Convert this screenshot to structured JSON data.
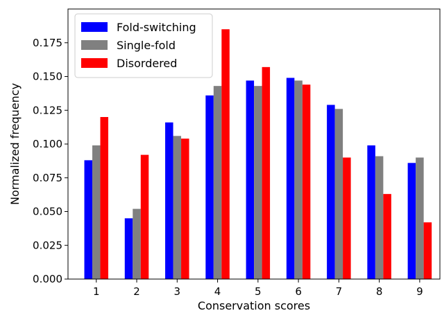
{
  "chart_data": {
    "type": "bar",
    "title": "",
    "xlabel": "Conservation scores",
    "ylabel": "Normalized frequency",
    "categories": [
      "1",
      "2",
      "3",
      "4",
      "5",
      "6",
      "7",
      "8",
      "9"
    ],
    "ylim": [
      0,
      0.2
    ],
    "yticks": [
      "0.000",
      "0.025",
      "0.050",
      "0.075",
      "0.100",
      "0.125",
      "0.150",
      "0.175"
    ],
    "grid": false,
    "legend_position": "top-left",
    "series": [
      {
        "name": "Fold-switching",
        "color": "#0000ff",
        "values": [
          0.088,
          0.045,
          0.116,
          0.136,
          0.147,
          0.149,
          0.129,
          0.099,
          0.086
        ]
      },
      {
        "name": "Single-fold",
        "color": "#808080",
        "values": [
          0.099,
          0.052,
          0.106,
          0.143,
          0.143,
          0.147,
          0.126,
          0.091,
          0.09
        ]
      },
      {
        "name": "Disordered",
        "color": "#ff0000",
        "values": [
          0.12,
          0.092,
          0.104,
          0.185,
          0.157,
          0.144,
          0.09,
          0.063,
          0.042
        ]
      }
    ]
  }
}
